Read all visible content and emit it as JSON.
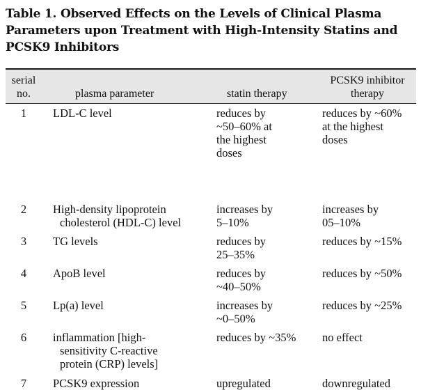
{
  "caption": {
    "line1": "Table 1. Observed Effects on the Levels of Clinical Plasma",
    "line2": "Parameters upon Treatment with High-Intensity Statins and",
    "line3": "PCSK9 Inhibitors"
  },
  "header": {
    "serial": [
      "serial",
      "no."
    ],
    "parameter": "plasma parameter",
    "statin": "statin therapy",
    "pcsk9": [
      "PCSK9 inhibitor",
      "therapy"
    ]
  },
  "rows": [
    {
      "serial": "1",
      "parameter": [
        "LDL-C level"
      ],
      "statin": [
        "reduces by",
        "~50–60% at",
        "the highest",
        "doses"
      ],
      "pcsk9": [
        "reduces by ~60%",
        "at the highest",
        "doses"
      ]
    },
    {
      "serial": "2",
      "parameter": [
        "High-density lipoprotein",
        "cholesterol (HDL-C) level"
      ],
      "statin": [
        "increases by",
        "5–10%"
      ],
      "pcsk9": [
        "increases by",
        "05–10%"
      ]
    },
    {
      "serial": "3",
      "parameter": [
        "TG levels"
      ],
      "statin": [
        "reduces by",
        "25–35%"
      ],
      "pcsk9": [
        "reduces by ~15%"
      ]
    },
    {
      "serial": "4",
      "parameter": [
        "ApoB level"
      ],
      "statin": [
        "reduces by",
        "~40–50%"
      ],
      "pcsk9": [
        "reduces by ~50%"
      ]
    },
    {
      "serial": "5",
      "parameter": [
        "Lp(a) level"
      ],
      "statin": [
        "increases by",
        "~0–50%"
      ],
      "pcsk9": [
        "reduces by ~25%"
      ]
    },
    {
      "serial": "6",
      "parameter": [
        "inflammation [high-",
        "sensitivity C-reactive",
        "protein (CRP) levels]"
      ],
      "statin": [
        "reduces by ~35%"
      ],
      "pcsk9": [
        "no effect"
      ]
    },
    {
      "serial": "7",
      "parameter": [
        "PCSK9 expression"
      ],
      "statin": [
        "upregulated"
      ],
      "pcsk9": [
        "downregulated"
      ]
    }
  ]
}
